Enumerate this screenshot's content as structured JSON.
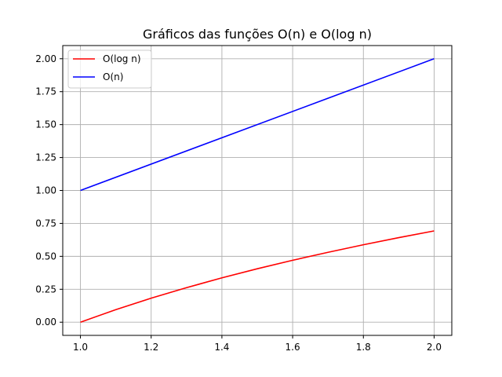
{
  "chart_data": {
    "type": "line",
    "title": "Gráficos das funções O(n) e O(log n)",
    "xlabel": "",
    "ylabel": "",
    "xlim": [
      0.95,
      2.05
    ],
    "ylim": [
      -0.1,
      2.1
    ],
    "xticks": [
      1.0,
      1.2,
      1.4,
      1.6,
      1.8,
      2.0
    ],
    "xtick_labels": [
      "1.0",
      "1.2",
      "1.4",
      "1.6",
      "1.8",
      "2.0"
    ],
    "yticks": [
      0.0,
      0.25,
      0.5,
      0.75,
      1.0,
      1.25,
      1.5,
      1.75,
      2.0
    ],
    "ytick_labels": [
      "0.00",
      "0.25",
      "0.50",
      "0.75",
      "1.00",
      "1.25",
      "1.50",
      "1.75",
      "2.00"
    ],
    "grid": true,
    "legend_position": "top-left",
    "series": [
      {
        "name": "O(log n)",
        "color": "#ff0000",
        "x": [
          1.0,
          1.1,
          1.2,
          1.3,
          1.4,
          1.5,
          1.6,
          1.7,
          1.8,
          1.9,
          2.0
        ],
        "y": [
          0.0,
          0.0953,
          0.1823,
          0.2624,
          0.3365,
          0.4055,
          0.47,
          0.5306,
          0.5878,
          0.6419,
          0.6931
        ]
      },
      {
        "name": "O(n)",
        "color": "#0000ff",
        "x": [
          1.0,
          2.0
        ],
        "y": [
          1.0,
          2.0
        ]
      }
    ]
  }
}
